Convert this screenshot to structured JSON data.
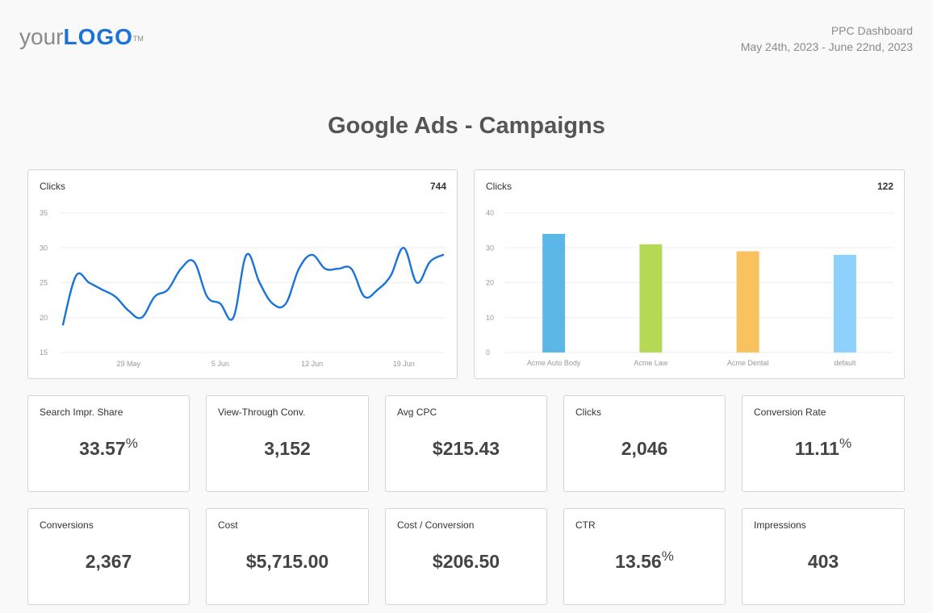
{
  "header": {
    "logo_your": "your",
    "logo_mark": "LOGO",
    "logo_tm": "TM",
    "dashboard_name": "PPC Dashboard",
    "date_range": "May 24th, 2023 - June 22nd, 2023"
  },
  "page_title": "Google Ads - Campaigns",
  "chart_data": [
    {
      "type": "line",
      "title": "Clicks",
      "total": "744",
      "ylim": [
        15,
        35
      ],
      "yticks": [
        "15",
        "20",
        "25",
        "30",
        "35"
      ],
      "xticks": [
        "29 May",
        "5 Jun",
        "12 Jun",
        "19 Jun"
      ],
      "grid": true,
      "color": "#1a73d9",
      "series": [
        {
          "values": [
            19,
            26,
            25,
            24,
            23,
            21,
            20,
            23,
            24,
            27,
            28,
            23,
            22,
            20,
            29,
            25,
            22,
            22,
            27,
            29,
            27,
            27,
            27,
            23,
            24,
            26,
            30,
            25,
            28,
            29
          ]
        }
      ]
    },
    {
      "type": "bar",
      "title": "Clicks",
      "total": "122",
      "ylim": [
        0,
        40
      ],
      "yticks": [
        "0",
        "10",
        "20",
        "30",
        "40"
      ],
      "categories": [
        "Acme Auto Body",
        "Acme Law",
        "Acme Dental",
        "default"
      ],
      "values": [
        34,
        31,
        29,
        28
      ],
      "colors": [
        "#5bb8e6",
        "#b6d955",
        "#f9c25e",
        "#8ed1fc"
      ],
      "grid": true
    }
  ],
  "kpis": [
    {
      "label": "Search Impr. Share",
      "value": "33.57",
      "unit": "%"
    },
    {
      "label": "View-Through Conv.",
      "value": "3,152",
      "unit": ""
    },
    {
      "label": "Avg CPC",
      "value": "$215.43",
      "unit": ""
    },
    {
      "label": "Clicks",
      "value": "2,046",
      "unit": ""
    },
    {
      "label": "Conversion Rate",
      "value": "11.11",
      "unit": "%"
    },
    {
      "label": "Conversions",
      "value": "2,367",
      "unit": ""
    },
    {
      "label": "Cost",
      "value": "$5,715.00",
      "unit": ""
    },
    {
      "label": "Cost / Conversion",
      "value": "$206.50",
      "unit": ""
    },
    {
      "label": "CTR",
      "value": "13.56",
      "unit": "%"
    },
    {
      "label": "Impressions",
      "value": "403",
      "unit": ""
    }
  ]
}
